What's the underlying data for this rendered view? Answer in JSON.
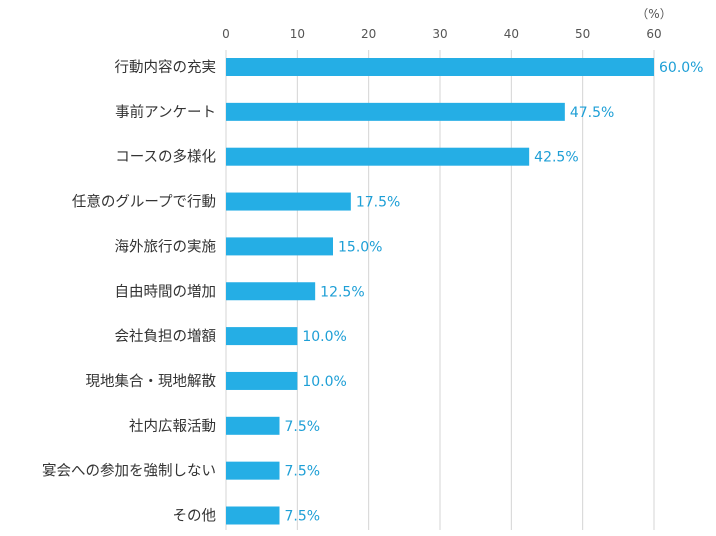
{
  "chart_data": {
    "type": "bar",
    "orientation": "horizontal",
    "unit": "（%）",
    "xlim": [
      0,
      60
    ],
    "ticks": [
      "0",
      "10",
      "20",
      "30",
      "40",
      "50",
      "60"
    ],
    "grid": true,
    "bar_color": "#25aee5",
    "label_color": "#1e9fd6",
    "categories": [
      "行動内容の充実",
      "事前アンケート",
      "コースの多様化",
      "任意のグループで行動",
      "海外旅行の実施",
      "自由時間の増加",
      "会社負担の増額",
      "現地集合・現地解散",
      "社内広報活動",
      "宴会への参加を強制しない",
      "その他"
    ],
    "values": [
      60.0,
      47.5,
      42.5,
      17.5,
      15.0,
      12.5,
      10.0,
      10.0,
      7.5,
      7.5,
      7.5
    ],
    "value_labels": [
      "60.0%",
      "47.5%",
      "42.5%",
      "17.5%",
      "15.0%",
      "12.5%",
      "10.0%",
      "10.0%",
      "7.5%",
      "7.5%",
      "7.5%"
    ]
  }
}
